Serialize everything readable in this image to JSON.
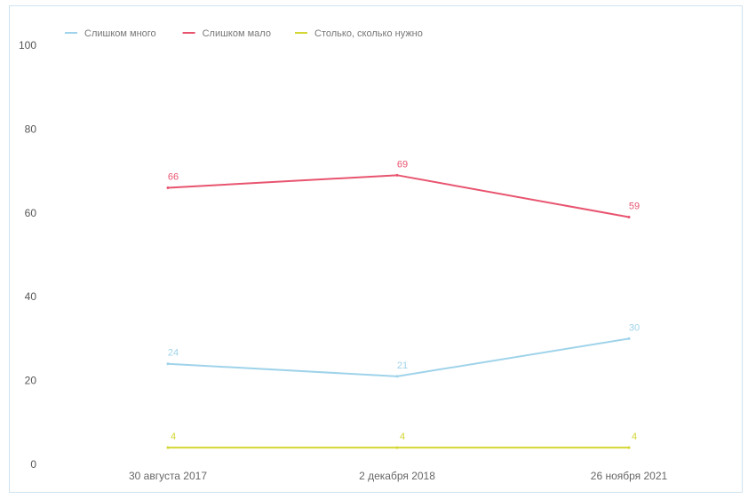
{
  "chart_data": {
    "type": "line",
    "categories": [
      "30 августа 2017",
      "2 декабря 2018",
      "26 ноября 2021"
    ],
    "ylim": [
      0,
      100
    ],
    "yticks": [
      0,
      20,
      40,
      60,
      80,
      100
    ],
    "grid": false,
    "legend_position": "top-left",
    "series": [
      {
        "name": "Слишком много",
        "values": [
          24,
          21,
          30
        ],
        "labels": [
          "24",
          "21",
          "30"
        ],
        "color": "#9fd3ea"
      },
      {
        "name": "Слишком мало",
        "values": [
          66,
          69,
          59
        ],
        "labels": [
          "66",
          "69",
          "59"
        ],
        "color": "#e8546f"
      },
      {
        "name": "Столько, сколько нужно",
        "values": [
          4,
          4,
          4
        ],
        "labels": [
          "4",
          "4",
          "4"
        ],
        "color": "#d4d633"
      }
    ]
  }
}
